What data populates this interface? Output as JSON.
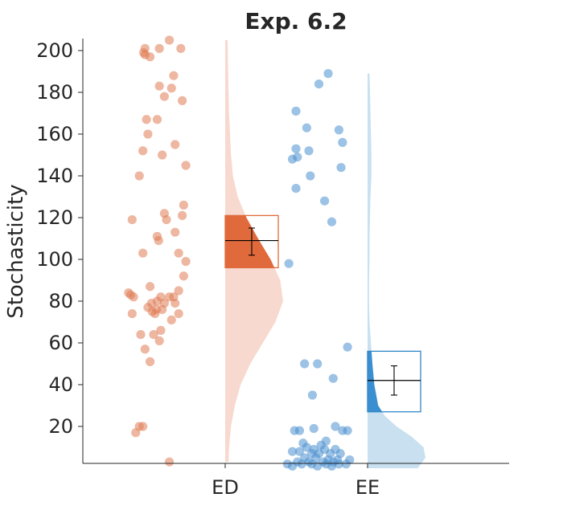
{
  "chart_data": {
    "type": "raincloud",
    "title": "Exp. 6.2",
    "xlabel": "",
    "ylabel": "Stochasticity",
    "ylim": [
      0,
      205
    ],
    "yticks": [
      20,
      40,
      60,
      80,
      100,
      120,
      140,
      160,
      180,
      200
    ],
    "categories": [
      "ED",
      "EE"
    ],
    "colors": {
      "ED": {
        "point": "#e07b54",
        "dark": "#e06a3c",
        "cloud": "#f7d9cf",
        "edge": "#e06a3c"
      },
      "EE": {
        "point": "#4a90cf",
        "dark": "#3a8fd0",
        "cloud": "#c8e0f0",
        "edge": "#2f86c6"
      }
    },
    "series": [
      {
        "name": "ED",
        "points": [
          [
            -1.12,
            201
          ],
          [
            -1.14,
            199
          ],
          [
            -1.12,
            198
          ],
          [
            -0.92,
            201
          ],
          [
            -0.78,
            205
          ],
          [
            -1.05,
            197
          ],
          [
            -0.62,
            201
          ],
          [
            -0.72,
            188
          ],
          [
            -0.92,
            183
          ],
          [
            -0.75,
            182
          ],
          [
            -0.85,
            178
          ],
          [
            -0.6,
            176
          ],
          [
            -1.1,
            167
          ],
          [
            -0.95,
            167
          ],
          [
            -1.08,
            160
          ],
          [
            -0.7,
            155
          ],
          [
            -1.15,
            152
          ],
          [
            -0.88,
            150
          ],
          [
            -0.55,
            145
          ],
          [
            -1.2,
            140
          ],
          [
            -0.58,
            126
          ],
          [
            -0.85,
            122
          ],
          [
            -0.6,
            121
          ],
          [
            -1.3,
            119
          ],
          [
            -0.82,
            119
          ],
          [
            -0.7,
            113
          ],
          [
            -0.95,
            111
          ],
          [
            -0.93,
            109
          ],
          [
            -1.15,
            103
          ],
          [
            -0.65,
            103
          ],
          [
            -0.55,
            99
          ],
          [
            -0.58,
            92
          ],
          [
            -1.05,
            87
          ],
          [
            -0.65,
            85
          ],
          [
            -1.35,
            84
          ],
          [
            -1.32,
            83
          ],
          [
            -1.28,
            82
          ],
          [
            -0.9,
            82
          ],
          [
            -0.78,
            82
          ],
          [
            -0.72,
            82
          ],
          [
            -0.95,
            80
          ],
          [
            -1.03,
            79
          ],
          [
            -0.85,
            79
          ],
          [
            -0.7,
            79
          ],
          [
            -1.08,
            77
          ],
          [
            -0.96,
            76
          ],
          [
            -0.88,
            76
          ],
          [
            -1.02,
            75
          ],
          [
            -1.3,
            74
          ],
          [
            -0.98,
            74
          ],
          [
            -0.65,
            74
          ],
          [
            -0.75,
            71
          ],
          [
            -0.9,
            66
          ],
          [
            -1.18,
            64
          ],
          [
            -1.0,
            64
          ],
          [
            -0.92,
            61
          ],
          [
            -1.12,
            57
          ],
          [
            -1.05,
            51
          ],
          [
            -1.2,
            20
          ],
          [
            -1.15,
            20
          ],
          [
            -1.25,
            17
          ],
          [
            -0.78,
            3
          ]
        ],
        "box": {
          "q1": 96,
          "q3": 121,
          "median": 109,
          "mean": 109,
          "ci_low": 102,
          "ci_high": 115
        }
      },
      {
        "name": "EE",
        "points": [
          [
            -0.55,
            189
          ],
          [
            -0.68,
            184
          ],
          [
            -1.0,
            171
          ],
          [
            -0.85,
            163
          ],
          [
            -0.4,
            162
          ],
          [
            -0.35,
            156
          ],
          [
            -1.0,
            153
          ],
          [
            -0.82,
            152
          ],
          [
            -1.05,
            148
          ],
          [
            -0.98,
            149
          ],
          [
            -0.37,
            144
          ],
          [
            -0.8,
            140
          ],
          [
            -0.6,
            128
          ],
          [
            -1.0,
            134
          ],
          [
            -0.5,
            118
          ],
          [
            -1.1,
            98
          ],
          [
            -0.28,
            58
          ],
          [
            -0.88,
            50
          ],
          [
            -0.7,
            50
          ],
          [
            -0.48,
            43
          ],
          [
            -0.77,
            35
          ],
          [
            -0.45,
            20
          ],
          [
            -0.75,
            19
          ],
          [
            -1.02,
            18
          ],
          [
            -0.95,
            18
          ],
          [
            -0.35,
            18
          ],
          [
            -0.28,
            18
          ],
          [
            -0.58,
            13
          ],
          [
            -0.9,
            12
          ],
          [
            -0.65,
            11
          ],
          [
            -0.85,
            10
          ],
          [
            -0.75,
            9
          ],
          [
            -0.6,
            9
          ],
          [
            -0.45,
            9
          ],
          [
            -1.05,
            8
          ],
          [
            -0.95,
            8
          ],
          [
            -0.78,
            7
          ],
          [
            -0.68,
            7
          ],
          [
            -0.52,
            7
          ],
          [
            -0.38,
            7
          ],
          [
            -0.88,
            5
          ],
          [
            -0.72,
            5
          ],
          [
            -0.55,
            4
          ],
          [
            -0.42,
            4
          ],
          [
            -0.25,
            4
          ],
          [
            -0.98,
            3
          ],
          [
            -0.82,
            3
          ],
          [
            -0.62,
            3
          ],
          [
            -0.48,
            3
          ],
          [
            -1.12,
            2
          ],
          [
            -0.92,
            2
          ],
          [
            -0.78,
            2
          ],
          [
            -0.58,
            2
          ],
          [
            -0.4,
            2
          ],
          [
            -0.3,
            2
          ],
          [
            -1.05,
            1
          ],
          [
            -0.7,
            1
          ],
          [
            -0.5,
            1
          ]
        ],
        "box": {
          "q1": 27,
          "q3": 56,
          "median": 42,
          "mean": 42,
          "ci_low": 35,
          "ci_high": 49
        }
      }
    ],
    "clouds": {
      "ED": [
        [
          3,
          0.035
        ],
        [
          10,
          0.04
        ],
        [
          20,
          0.06
        ],
        [
          30,
          0.1
        ],
        [
          40,
          0.16
        ],
        [
          50,
          0.26
        ],
        [
          60,
          0.39
        ],
        [
          70,
          0.52
        ],
        [
          80,
          0.6
        ],
        [
          90,
          0.57
        ],
        [
          100,
          0.47
        ],
        [
          110,
          0.34
        ],
        [
          120,
          0.22
        ],
        [
          130,
          0.13
        ],
        [
          140,
          0.08
        ],
        [
          150,
          0.06
        ],
        [
          160,
          0.05
        ],
        [
          170,
          0.04
        ],
        [
          180,
          0.035
        ],
        [
          190,
          0.03
        ],
        [
          205,
          0.025
        ]
      ],
      "EE": [
        [
          0,
          0.52
        ],
        [
          5,
          0.6
        ],
        [
          10,
          0.58
        ],
        [
          15,
          0.46
        ],
        [
          20,
          0.3
        ],
        [
          25,
          0.18
        ],
        [
          30,
          0.11
        ],
        [
          40,
          0.07
        ],
        [
          50,
          0.05
        ],
        [
          60,
          0.035
        ],
        [
          70,
          0.02
        ],
        [
          80,
          0.015
        ],
        [
          90,
          0.015
        ],
        [
          100,
          0.02
        ],
        [
          110,
          0.02
        ],
        [
          120,
          0.025
        ],
        [
          130,
          0.03
        ],
        [
          140,
          0.04
        ],
        [
          150,
          0.04
        ],
        [
          160,
          0.035
        ],
        [
          170,
          0.03
        ],
        [
          180,
          0.025
        ],
        [
          189,
          0.02
        ]
      ]
    },
    "grid": false,
    "legend": "none"
  }
}
